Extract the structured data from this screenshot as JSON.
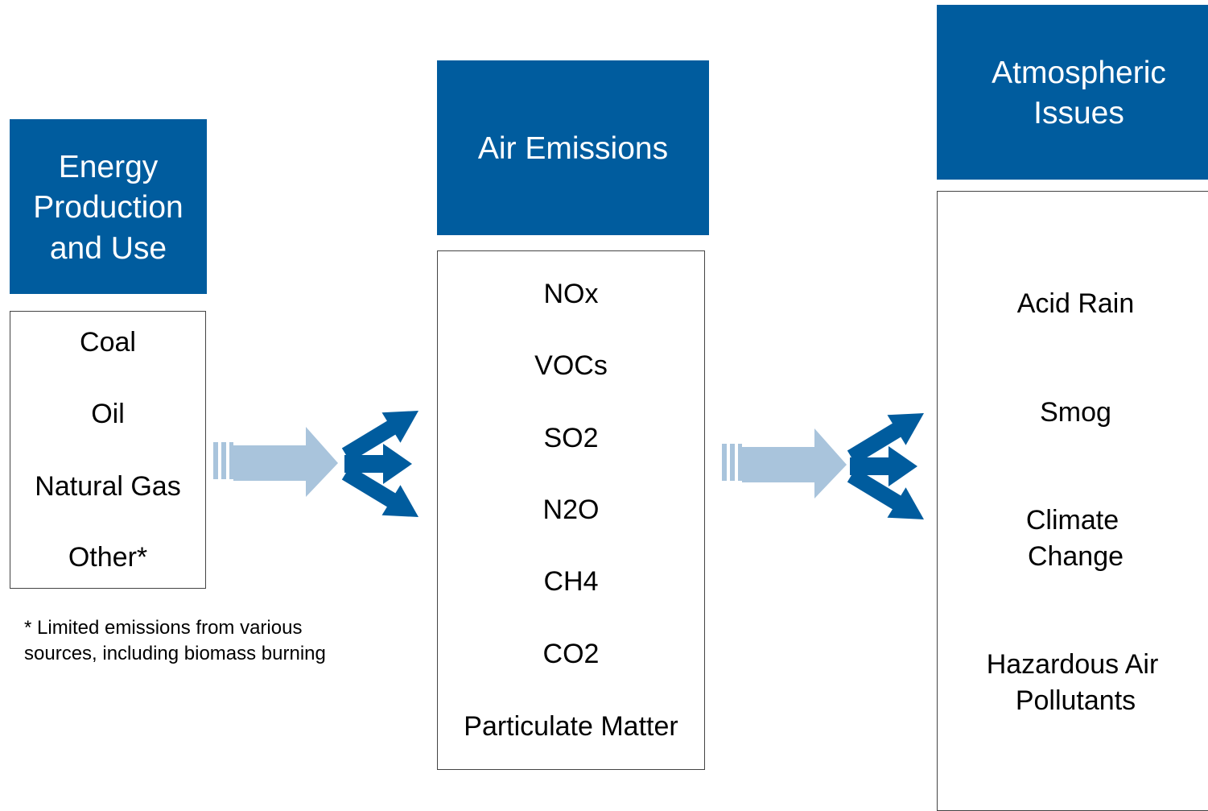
{
  "columns": [
    {
      "header": [
        "Energy",
        "Production",
        "and Use"
      ],
      "items": [
        [
          "Coal"
        ],
        [
          "Oil"
        ],
        [
          "Natural Gas"
        ],
        [
          "Other*"
        ]
      ],
      "footnote": [
        "* Limited emissions from various",
        "sources, including biomass burning"
      ]
    },
    {
      "header": [
        "Air Emissions"
      ],
      "items": [
        [
          "NOx"
        ],
        [
          "VOCs"
        ],
        [
          "SO2"
        ],
        [
          "N2O"
        ],
        [
          "CH4"
        ],
        [
          "CO2"
        ],
        [
          "Particulate Matter"
        ]
      ]
    },
    {
      "header": [
        "Atmospheric",
        "Issues"
      ],
      "items": [
        [
          "Acid Rain"
        ],
        [
          "Smog"
        ],
        [
          "Climate",
          "Change"
        ],
        [
          "Hazardous Air",
          "Pollutants"
        ]
      ]
    }
  ]
}
